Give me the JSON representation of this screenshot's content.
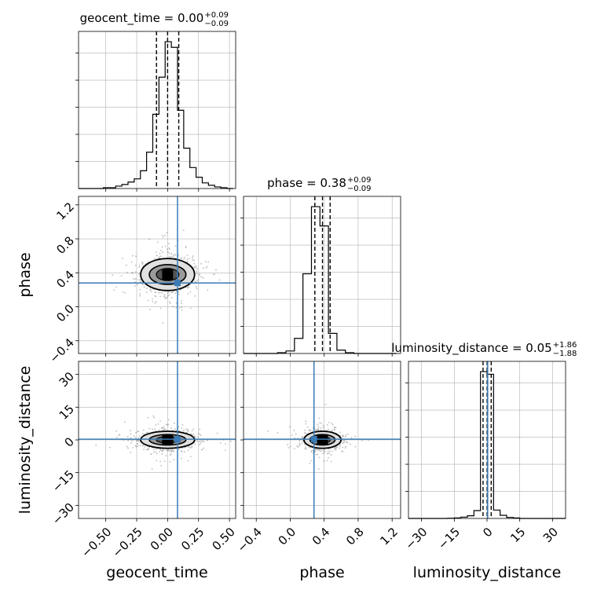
{
  "chart_data": {
    "type": "corner",
    "grid": true,
    "colors": {
      "hist": "#000000",
      "truth": "#3a7ab5",
      "grid": "#b0b0b0",
      "scatter": "#444444"
    },
    "parameters": [
      {
        "name": "geocent_time",
        "range": [
          -0.72,
          0.55
        ],
        "ticks": [
          -0.5,
          -0.25,
          0.0,
          0.25,
          0.5
        ],
        "tick_labels": [
          "−0.50",
          "−0.25",
          "0.00",
          "0.25",
          "0.50"
        ],
        "truth": 0.08,
        "title": "geocent_time = 0.00",
        "title_main": "geocent_time = 0.00",
        "title_sup": "+0.09",
        "title_sub": "−0.09",
        "median": 0.0,
        "q_low": -0.09,
        "q_high": 0.09,
        "hist_bins": [
          -0.72,
          -0.67,
          -0.62,
          -0.57,
          -0.52,
          -0.47,
          -0.42,
          -0.37,
          -0.32,
          -0.27,
          -0.22,
          -0.17,
          -0.12,
          -0.07,
          -0.02,
          0.03,
          0.08,
          0.13,
          0.18,
          0.23,
          0.28,
          0.33,
          0.38,
          0.43,
          0.48,
          0.53
        ],
        "hist_counts": [
          0,
          0,
          0,
          0,
          1,
          1,
          3,
          5,
          8,
          12,
          22,
          45,
          92,
          138,
          182,
          175,
          97,
          50,
          26,
          14,
          7,
          4,
          2,
          1,
          0
        ]
      },
      {
        "name": "phase",
        "range": [
          -0.55,
          1.3
        ],
        "ticks": [
          -0.4,
          0.0,
          0.4,
          0.8,
          1.2
        ],
        "tick_labels": [
          "−0.4",
          "0.0",
          "0.4",
          "0.8",
          "1.2"
        ],
        "truth": 0.28,
        "title": "phase = 0.38",
        "title_main": "phase = 0.38",
        "title_sup": "+0.09",
        "title_sub": "−0.09",
        "median": 0.38,
        "q_low": 0.29,
        "q_high": 0.47,
        "hist_bins": [
          -0.55,
          -0.45,
          -0.35,
          -0.25,
          -0.15,
          -0.05,
          0.05,
          0.15,
          0.25,
          0.35,
          0.45,
          0.55,
          0.65,
          0.75,
          0.85,
          0.95,
          1.05,
          1.15,
          1.25
        ],
        "hist_counts": [
          0,
          0,
          0,
          0,
          1,
          3,
          18,
          95,
          175,
          152,
          24,
          4,
          1,
          0,
          0,
          0,
          0,
          0
        ]
      },
      {
        "name": "luminosity_distance",
        "range": [
          -36,
          36
        ],
        "ticks": [
          -30,
          -15,
          0,
          15,
          30
        ],
        "tick_labels": [
          "−30",
          "−15",
          "0",
          "15",
          "30"
        ],
        "truth": 0.3,
        "title": "luminosity_distance = 0.05",
        "title_main": "luminosity_distance = 0.05",
        "title_sup": "+1.86",
        "title_sub": "−1.88",
        "median": 0.05,
        "q_low": -1.83,
        "q_high": 1.91,
        "hist_bins": [
          -36,
          -33,
          -30,
          -27,
          -24,
          -21,
          -18,
          -15,
          -12,
          -9,
          -6,
          -3,
          0,
          3,
          6,
          9,
          12,
          15,
          18,
          21,
          24,
          27,
          30,
          33,
          36
        ],
        "hist_counts": [
          0,
          0,
          0,
          0,
          0,
          0,
          1,
          2,
          5,
          10,
          30,
          560,
          550,
          32,
          12,
          4,
          2,
          0,
          0,
          0,
          0,
          0,
          0,
          0
        ]
      }
    ]
  }
}
